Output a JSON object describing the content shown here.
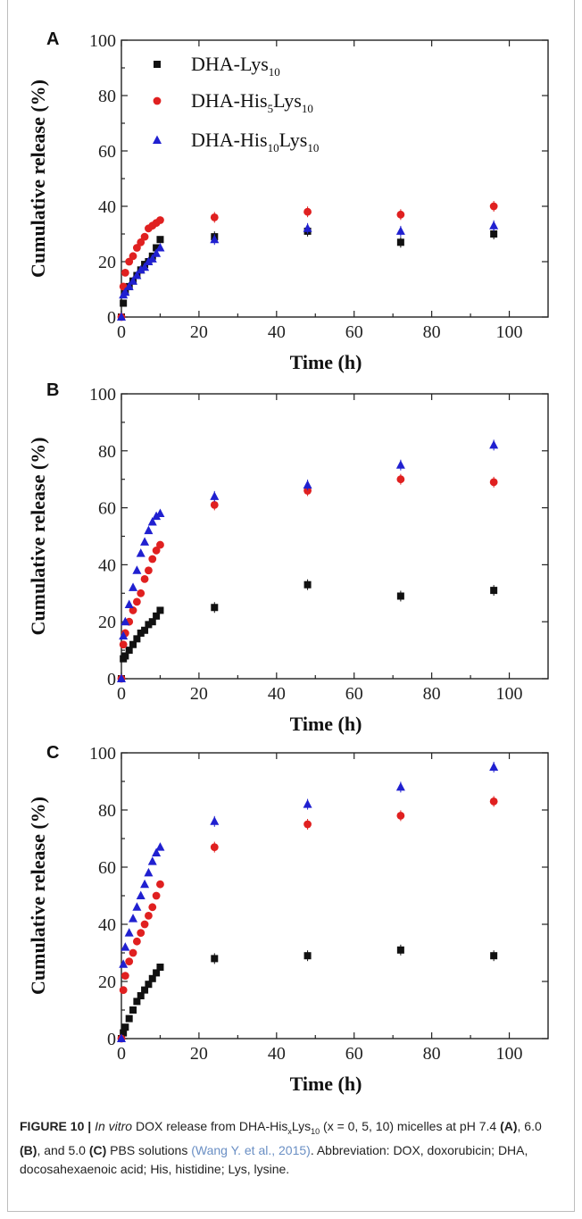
{
  "colors": {
    "series": [
      "#111111",
      "#e02020",
      "#2020d0"
    ],
    "cite": "#6a8fc4"
  },
  "chart_data": [
    {
      "type": "scatter",
      "panel": "A",
      "xlabel": "Time (h)",
      "ylabel": "Cumulative release (%)",
      "xlim": [
        0,
        110
      ],
      "ylim": [
        0,
        100
      ],
      "xticks": [
        0,
        20,
        40,
        60,
        80,
        100
      ],
      "yticks": [
        0,
        20,
        40,
        60,
        80,
        100
      ],
      "grid": false,
      "legend": "top-left",
      "series": [
        {
          "name": "DHA-Lys10",
          "marker": "square",
          "x": [
            0,
            0.5,
            1,
            2,
            3,
            4,
            5,
            6,
            7,
            8,
            9,
            10,
            24,
            48,
            72,
            96
          ],
          "y": [
            0,
            5,
            9,
            11,
            13,
            15,
            17,
            19,
            20,
            22,
            25,
            28,
            29,
            31,
            27,
            30
          ]
        },
        {
          "name": "DHA-His5Lys10",
          "marker": "circle",
          "x": [
            0,
            0.5,
            1,
            2,
            3,
            4,
            5,
            6,
            7,
            8,
            9,
            10,
            24,
            48,
            72,
            96
          ],
          "y": [
            0,
            11,
            16,
            20,
            22,
            25,
            27,
            29,
            32,
            33,
            34,
            35,
            36,
            38,
            37,
            40
          ]
        },
        {
          "name": "DHA-His10Lys10",
          "marker": "triangle",
          "x": [
            0,
            0.5,
            1,
            2,
            3,
            4,
            5,
            6,
            7,
            8,
            9,
            10,
            24,
            48,
            72,
            96
          ],
          "y": [
            0,
            8,
            9,
            11,
            13,
            15,
            17,
            18,
            20,
            21,
            23,
            25,
            28,
            32,
            31,
            33
          ]
        }
      ]
    },
    {
      "type": "scatter",
      "panel": "B",
      "xlabel": "Time (h)",
      "ylabel": "Cumulative release (%)",
      "xlim": [
        0,
        110
      ],
      "ylim": [
        0,
        100
      ],
      "xticks": [
        0,
        20,
        40,
        60,
        80,
        100
      ],
      "yticks": [
        0,
        20,
        40,
        60,
        80,
        100
      ],
      "grid": false,
      "series": [
        {
          "name": "DHA-Lys10",
          "marker": "square",
          "x": [
            0,
            0.5,
            1,
            2,
            3,
            4,
            5,
            6,
            7,
            8,
            9,
            10,
            24,
            48,
            72,
            96
          ],
          "y": [
            0,
            7,
            8,
            10,
            12,
            14,
            16,
            17,
            19,
            20,
            22,
            24,
            25,
            33,
            29,
            31
          ]
        },
        {
          "name": "DHA-His5Lys10",
          "marker": "circle",
          "x": [
            0,
            0.5,
            1,
            2,
            3,
            4,
            5,
            6,
            7,
            8,
            9,
            10,
            24,
            48,
            72,
            96
          ],
          "y": [
            0,
            12,
            16,
            20,
            24,
            27,
            30,
            35,
            38,
            42,
            45,
            47,
            61,
            66,
            70,
            69
          ]
        },
        {
          "name": "DHA-His10Lys10",
          "marker": "triangle",
          "x": [
            0,
            0.5,
            1,
            2,
            3,
            4,
            5,
            6,
            7,
            8,
            9,
            10,
            24,
            48,
            72,
            96
          ],
          "y": [
            0,
            15,
            20,
            26,
            32,
            38,
            44,
            48,
            52,
            55,
            57,
            58,
            64,
            68,
            75,
            82
          ]
        }
      ]
    },
    {
      "type": "scatter",
      "panel": "C",
      "xlabel": "Time (h)",
      "ylabel": "Cumulative release (%)",
      "xlim": [
        0,
        110
      ],
      "ylim": [
        0,
        100
      ],
      "xticks": [
        0,
        20,
        40,
        60,
        80,
        100
      ],
      "yticks": [
        0,
        20,
        40,
        60,
        80,
        100
      ],
      "grid": false,
      "series": [
        {
          "name": "DHA-Lys10",
          "marker": "square",
          "x": [
            0,
            0.5,
            1,
            2,
            3,
            4,
            5,
            6,
            7,
            8,
            9,
            10,
            24,
            48,
            72,
            96
          ],
          "y": [
            0,
            2,
            4,
            7,
            10,
            13,
            15,
            17,
            19,
            21,
            23,
            25,
            28,
            29,
            31,
            29
          ]
        },
        {
          "name": "DHA-His5Lys10",
          "marker": "circle",
          "x": [
            0,
            0.5,
            1,
            2,
            3,
            4,
            5,
            6,
            7,
            8,
            9,
            10,
            24,
            48,
            72,
            96
          ],
          "y": [
            0,
            17,
            22,
            27,
            30,
            34,
            37,
            40,
            43,
            46,
            50,
            54,
            67,
            75,
            78,
            83
          ]
        },
        {
          "name": "DHA-His10Lys10",
          "marker": "triangle",
          "x": [
            0,
            0.5,
            1,
            2,
            3,
            4,
            5,
            6,
            7,
            8,
            9,
            10,
            24,
            48,
            72,
            96
          ],
          "y": [
            0,
            26,
            32,
            37,
            42,
            46,
            50,
            54,
            58,
            62,
            65,
            67,
            76,
            82,
            88,
            95
          ]
        }
      ]
    }
  ],
  "legend": {
    "items": [
      {
        "base": "DHA-Lys",
        "sub1": "10",
        "mid": "",
        "sub2": ""
      },
      {
        "base": "DHA-His",
        "sub1": "5",
        "mid": "Lys",
        "sub2": "10"
      },
      {
        "base": "DHA-His",
        "sub1": "10",
        "mid": "Lys",
        "sub2": "10"
      }
    ]
  },
  "caption": {
    "figure_label": "FIGURE 10 |",
    "italic": "In vitro",
    "t1": "DOX release from DHA-His",
    "sub_x": "x",
    "t2": "Lys",
    "sub_10": "10",
    "t3": "(x = 0, 5, 10) micelles at pH 7.4",
    "lab_a": "(A)",
    "t4": ", 6.0",
    "lab_b": "(B)",
    "t5": ", and 5.0",
    "lab_c": "(C)",
    "t6": "PBS solutions",
    "cite": "(Wang Y. et al., 2015)",
    "t7": ". Abbreviation: DOX, doxorubicin; DHA, docosahexaenoic acid; His, histidine; Lys, lysine."
  }
}
